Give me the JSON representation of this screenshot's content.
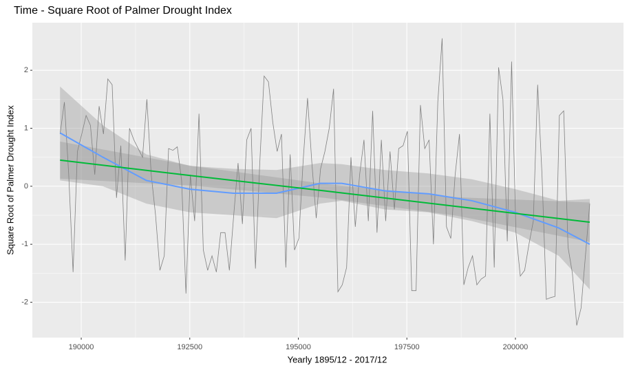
{
  "chart_data": {
    "type": "line",
    "title": "Time - Square Root of Palmer Drought Index",
    "x_label": "Yearly 1895/12 - 2017/12",
    "y_label": "Square Root of Palmer Drought Index",
    "xlim": [
      188874,
      202489
    ],
    "xticks": [
      190000,
      192500,
      195000,
      197500,
      200000
    ],
    "ylim": [
      -2.61,
      2.82
    ],
    "yticks": [
      -2,
      -1,
      0,
      1,
      2
    ],
    "grid": true,
    "line": {
      "color": "#7f7f7f",
      "x": [
        189512,
        189612,
        189712,
        189812,
        189912,
        190012,
        190112,
        190212,
        190312,
        190412,
        190512,
        190612,
        190712,
        190812,
        190912,
        191012,
        191112,
        191212,
        191312,
        191412,
        191512,
        191612,
        191712,
        191812,
        191912,
        192012,
        192112,
        192212,
        192312,
        192412,
        192512,
        192612,
        192712,
        192812,
        192912,
        193012,
        193112,
        193212,
        193312,
        193412,
        193512,
        193612,
        193712,
        193812,
        193912,
        194012,
        194112,
        194212,
        194312,
        194412,
        194512,
        194612,
        194712,
        194812,
        194912,
        195012,
        195112,
        195212,
        195312,
        195412,
        195512,
        195612,
        195712,
        195812,
        195912,
        196012,
        196112,
        196212,
        196312,
        196412,
        196512,
        196612,
        196712,
        196812,
        196912,
        197012,
        197112,
        197212,
        197312,
        197412,
        197512,
        197612,
        197712,
        197812,
        197912,
        198012,
        198112,
        198212,
        198312,
        198412,
        198512,
        198612,
        198712,
        198812,
        198912,
        199012,
        199112,
        199212,
        199312,
        199412,
        199512,
        199612,
        199712,
        199812,
        199912,
        200012,
        200112,
        200212,
        200312,
        200412,
        200512,
        200612,
        200712,
        200812,
        200912,
        201012,
        201112,
        201212,
        201312,
        201412,
        201512,
        201612,
        201712
      ],
      "values": [
        0.9,
        1.45,
        0.2,
        -1.48,
        0.6,
        0.9,
        1.22,
        1.05,
        0.2,
        1.38,
        0.9,
        1.85,
        1.75,
        -0.2,
        0.7,
        -1.28,
        1.0,
        0.8,
        0.65,
        0.5,
        1.5,
        0.2,
        -0.5,
        -1.45,
        -1.2,
        0.65,
        0.62,
        0.68,
        0.1,
        -1.85,
        0.2,
        -0.6,
        1.25,
        -1.1,
        -1.45,
        -1.2,
        -1.48,
        -0.8,
        -0.8,
        -1.45,
        -0.5,
        0.4,
        -0.65,
        0.8,
        1.0,
        -1.42,
        0.4,
        1.9,
        1.8,
        1.1,
        0.6,
        0.9,
        -1.4,
        0.55,
        -1.1,
        -0.9,
        0.45,
        1.52,
        0.4,
        -0.55,
        0.3,
        0.6,
        1.0,
        1.68,
        -1.82,
        -1.7,
        -1.4,
        0.5,
        -0.7,
        0.2,
        0.8,
        -0.6,
        1.3,
        -0.8,
        0.8,
        -0.6,
        0.6,
        -0.4,
        0.65,
        0.7,
        0.95,
        -1.8,
        -1.8,
        1.4,
        0.65,
        0.8,
        -1.0,
        1.45,
        2.55,
        -0.7,
        -0.9,
        0.2,
        0.9,
        -1.7,
        -1.4,
        -1.2,
        -1.7,
        -1.6,
        -1.55,
        1.25,
        -1.4,
        2.05,
        1.5,
        -0.95,
        2.15,
        -0.8,
        -1.55,
        -1.45,
        -1.0,
        -0.6,
        1.75,
        0.2,
        -1.95,
        -1.92,
        -1.9,
        1.22,
        1.3,
        -1.05,
        -1.5,
        -2.4,
        -2.1,
        -1.2,
        -0.3
      ]
    },
    "smooths": [
      {
        "color": "#619cff",
        "x": [
          189512,
          190500,
          191500,
          192500,
          193500,
          194500,
          195500,
          196000,
          197000,
          198000,
          199000,
          200000,
          201000,
          201712
        ],
        "values": [
          0.92,
          0.5,
          0.1,
          -0.05,
          -0.12,
          -0.12,
          0.05,
          0.05,
          -0.08,
          -0.13,
          -0.25,
          -0.45,
          -0.72,
          -1.0
        ],
        "upper": [
          1.72,
          1.05,
          0.55,
          0.35,
          0.3,
          0.28,
          0.4,
          0.38,
          0.28,
          0.22,
          0.12,
          -0.05,
          -0.25,
          -0.22
        ],
        "lower": [
          0.1,
          0.0,
          -0.3,
          -0.45,
          -0.5,
          -0.55,
          -0.3,
          -0.25,
          -0.4,
          -0.45,
          -0.6,
          -0.8,
          -1.2,
          -1.78
        ]
      },
      {
        "color": "#00ba38",
        "x": [
          189512,
          192562,
          195612,
          198662,
          201712
        ],
        "values": [
          0.45,
          0.18,
          -0.08,
          -0.35,
          -0.62
        ],
        "upper": [
          0.77,
          0.35,
          0.04,
          -0.19,
          -0.28
        ],
        "lower": [
          0.13,
          0.01,
          -0.2,
          -0.51,
          -0.96
        ]
      }
    ]
  }
}
